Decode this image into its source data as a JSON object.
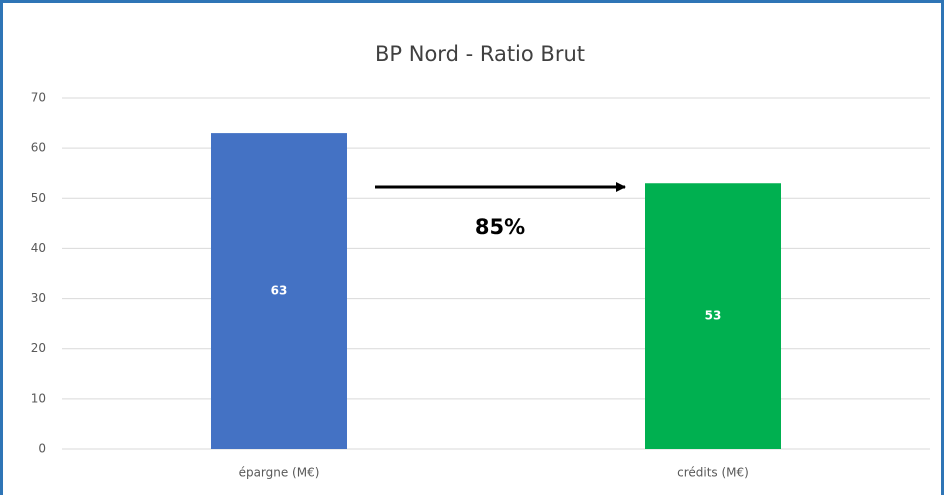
{
  "chart_data": {
    "type": "bar",
    "title": "BP Nord - Ratio Brut",
    "categories": [
      "épargne (M€)",
      "crédits (M€)"
    ],
    "values": [
      63,
      53
    ],
    "colors": [
      "#4472c4",
      "#00b050"
    ],
    "annotation": "85%",
    "ylim": [
      0,
      70
    ],
    "yticks": [
      0,
      10,
      20,
      30,
      40,
      50,
      60,
      70
    ],
    "grid": true
  }
}
